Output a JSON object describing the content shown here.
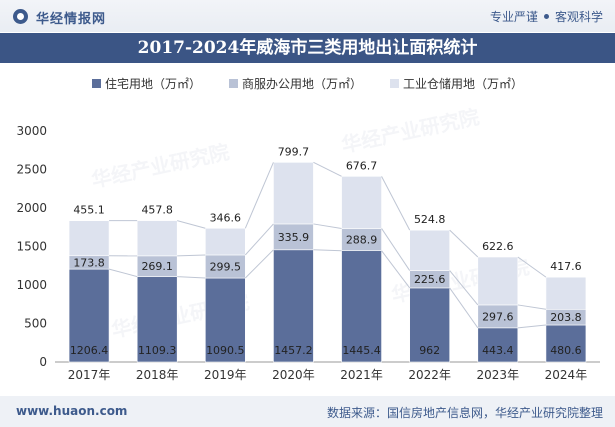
{
  "header": {
    "brand": "华经情报网",
    "tagline_left": "专业严谨",
    "tagline_right": "客观科学"
  },
  "title": "2017-2024年威海市三类用地出让面积统计",
  "footer": {
    "site": "www.huaon.com",
    "source": "数据来源：国信房地产信息网，华经产业研究院整理"
  },
  "watermark": "华经产业研究院",
  "colors": {
    "residential": "#5b6e9a",
    "commercial": "#b9c2d6",
    "industrial": "#dde2ee",
    "title_bg": "#3b5585"
  },
  "chart_data": {
    "type": "bar",
    "stacked": true,
    "categories": [
      "2017年",
      "2018年",
      "2019年",
      "2020年",
      "2021年",
      "2022年",
      "2023年",
      "2024年"
    ],
    "series": [
      {
        "name": "住宅用地（万㎡）",
        "values": [
          1206.4,
          1109.3,
          1090.5,
          1457.2,
          1445.4,
          962.0,
          443.4,
          480.6
        ]
      },
      {
        "name": "商服办公用地（万㎡）",
        "values": [
          173.8,
          269.1,
          299.5,
          335.9,
          288.9,
          225.6,
          297.6,
          203.8
        ]
      },
      {
        "name": "工业仓储用地（万㎡）",
        "values": [
          455.1,
          457.8,
          346.6,
          799.7,
          676.7,
          524.8,
          622.6,
          417.6
        ]
      }
    ],
    "ylim": [
      0,
      3000
    ],
    "yticks": [
      0,
      500,
      1000,
      1500,
      2000,
      2500,
      3000
    ],
    "legend_position": "top",
    "grid": false
  }
}
